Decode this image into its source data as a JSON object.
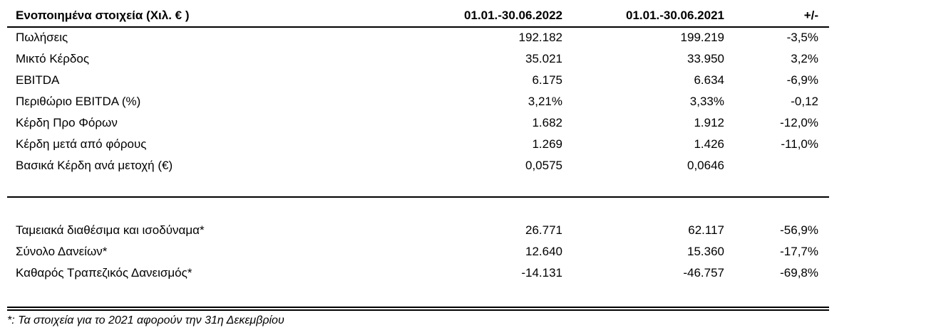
{
  "table": {
    "header": [
      "Ενοποιημένα στοιχεία (Χιλ. € )",
      "01.01.-30.06.2022",
      "01.01.-30.06.2021",
      "+/-"
    ],
    "groups": [
      [
        [
          "Πωλήσεις",
          "192.182",
          "199.219",
          "-3,5%"
        ],
        [
          "Μικτό Κέρδος",
          "35.021",
          "33.950",
          "3,2%"
        ],
        [
          "EBITDA",
          "6.175",
          "6.634",
          "-6,9%"
        ],
        [
          "Περιθώριο EBITDA (%)",
          "3,21%",
          "3,33%",
          "-0,12"
        ],
        [
          "Κέρδη Προ Φόρων",
          "1.682",
          "1.912",
          "-12,0%"
        ],
        [
          "Κέρδη μετά από φόρους",
          "1.269",
          "1.426",
          "-11,0%"
        ],
        [
          "Βασικά Κέρδη ανά μετοχή (€)",
          "0,0575",
          "0,0646"
        ]
      ],
      [
        [
          "Ταμειακά διαθέσιμα και ισοδύναμα*",
          "26.771",
          "62.117",
          "-56,9%"
        ],
        [
          "Σύνολο Δανείων*",
          "12.640",
          "15.360",
          "-17,7%"
        ],
        [
          "Καθαρός Τραπεζικός Δανεισμός*",
          "-14.131",
          "-46.757",
          "-69,8%"
        ]
      ]
    ]
  },
  "footnote": "*: Τα στοιχεία για το 2021 αφορούν την 31η Δεκεμβρίου"
}
